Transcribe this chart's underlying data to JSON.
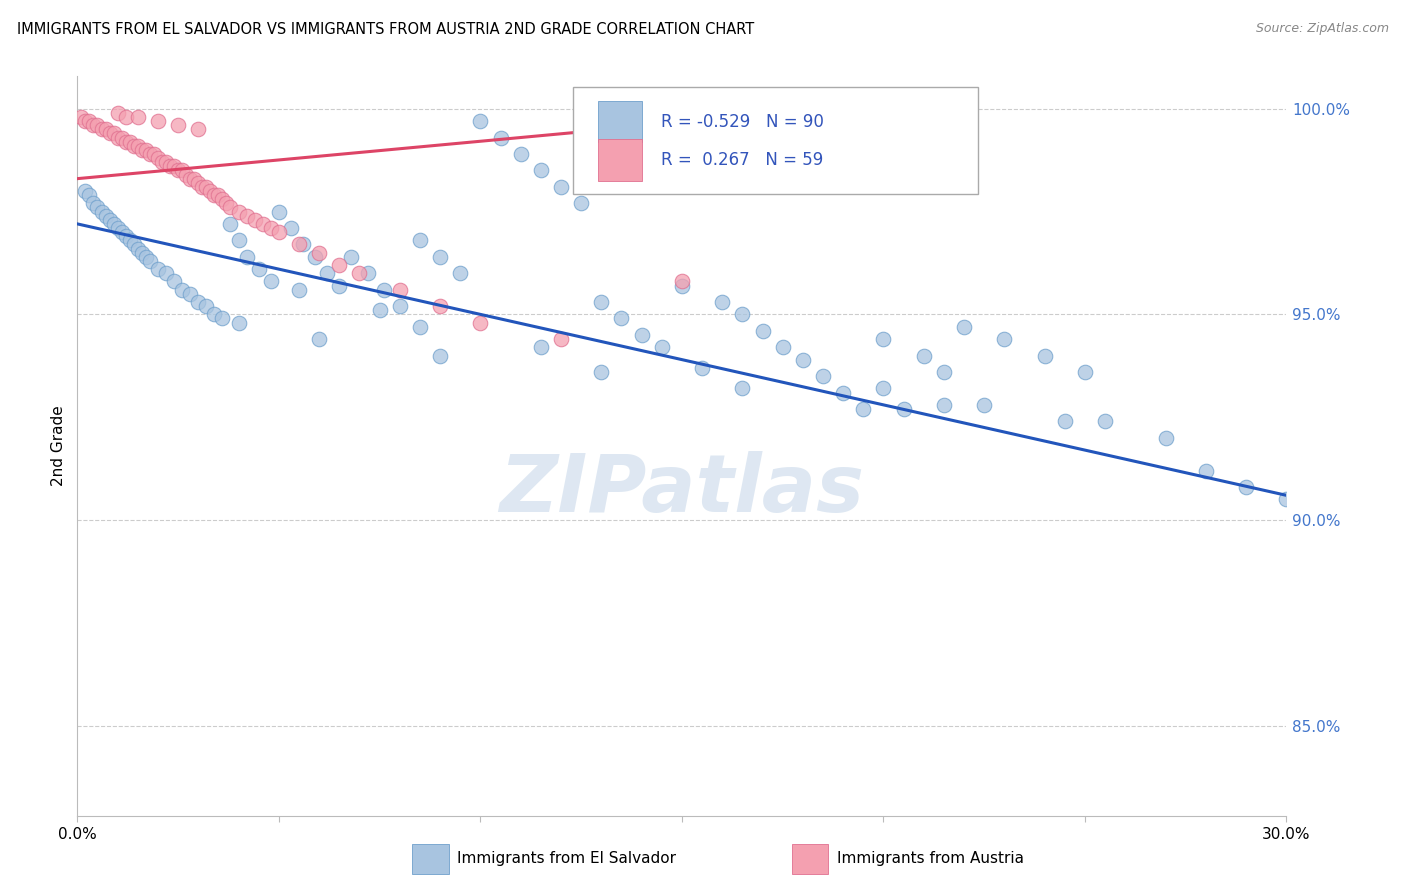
{
  "title": "IMMIGRANTS FROM EL SALVADOR VS IMMIGRANTS FROM AUSTRIA 2ND GRADE CORRELATION CHART",
  "source": "Source: ZipAtlas.com",
  "ylabel": "2nd Grade",
  "x_min": 0.0,
  "x_max": 0.3,
  "y_min": 0.828,
  "y_max": 1.008,
  "y_ticks": [
    0.85,
    0.9,
    0.95,
    1.0
  ],
  "y_tick_labels": [
    "85.0%",
    "90.0%",
    "95.0%",
    "100.0%"
  ],
  "x_ticks": [
    0.0,
    0.05,
    0.1,
    0.15,
    0.2,
    0.25,
    0.3
  ],
  "el_salvador_color": "#a8c4e0",
  "el_salvador_edge": "#6fa0cc",
  "austria_color": "#f4a0b0",
  "austria_edge": "#e07090",
  "el_salvador_line_color": "#2255bb",
  "austria_line_color": "#dd4466",
  "background_color": "#ffffff",
  "grid_color": "#cccccc",
  "watermark_text": "ZIPatlas",
  "watermark_color": "#c8d8ea",
  "el_salvador_x": [
    0.002,
    0.003,
    0.004,
    0.005,
    0.006,
    0.007,
    0.008,
    0.009,
    0.01,
    0.011,
    0.012,
    0.013,
    0.014,
    0.015,
    0.016,
    0.017,
    0.018,
    0.02,
    0.022,
    0.024,
    0.026,
    0.028,
    0.03,
    0.032,
    0.034,
    0.036,
    0.038,
    0.04,
    0.042,
    0.045,
    0.048,
    0.05,
    0.053,
    0.056,
    0.059,
    0.062,
    0.065,
    0.068,
    0.072,
    0.076,
    0.08,
    0.085,
    0.09,
    0.095,
    0.1,
    0.105,
    0.11,
    0.115,
    0.12,
    0.125,
    0.13,
    0.135,
    0.14,
    0.145,
    0.15,
    0.16,
    0.165,
    0.17,
    0.175,
    0.18,
    0.185,
    0.19,
    0.195,
    0.2,
    0.21,
    0.215,
    0.22,
    0.23,
    0.24,
    0.25,
    0.055,
    0.075,
    0.085,
    0.115,
    0.155,
    0.165,
    0.205,
    0.225,
    0.255,
    0.27,
    0.04,
    0.06,
    0.09,
    0.13,
    0.2,
    0.215,
    0.245,
    0.28,
    0.29,
    0.3
  ],
  "el_salvador_y": [
    0.98,
    0.979,
    0.977,
    0.976,
    0.975,
    0.974,
    0.973,
    0.972,
    0.971,
    0.97,
    0.969,
    0.968,
    0.967,
    0.966,
    0.965,
    0.964,
    0.963,
    0.961,
    0.96,
    0.958,
    0.956,
    0.955,
    0.953,
    0.952,
    0.95,
    0.949,
    0.972,
    0.968,
    0.964,
    0.961,
    0.958,
    0.975,
    0.971,
    0.967,
    0.964,
    0.96,
    0.957,
    0.964,
    0.96,
    0.956,
    0.952,
    0.968,
    0.964,
    0.96,
    0.997,
    0.993,
    0.989,
    0.985,
    0.981,
    0.977,
    0.953,
    0.949,
    0.945,
    0.942,
    0.957,
    0.953,
    0.95,
    0.946,
    0.942,
    0.939,
    0.935,
    0.931,
    0.927,
    0.944,
    0.94,
    0.936,
    0.947,
    0.944,
    0.94,
    0.936,
    0.956,
    0.951,
    0.947,
    0.942,
    0.937,
    0.932,
    0.927,
    0.928,
    0.924,
    0.92,
    0.948,
    0.944,
    0.94,
    0.936,
    0.932,
    0.928,
    0.924,
    0.912,
    0.908,
    0.905
  ],
  "austria_x": [
    0.001,
    0.002,
    0.003,
    0.004,
    0.005,
    0.006,
    0.007,
    0.008,
    0.009,
    0.01,
    0.011,
    0.012,
    0.013,
    0.014,
    0.015,
    0.016,
    0.017,
    0.018,
    0.019,
    0.02,
    0.021,
    0.022,
    0.023,
    0.024,
    0.025,
    0.026,
    0.027,
    0.028,
    0.029,
    0.03,
    0.031,
    0.032,
    0.033,
    0.034,
    0.035,
    0.036,
    0.037,
    0.038,
    0.04,
    0.042,
    0.044,
    0.046,
    0.048,
    0.05,
    0.055,
    0.06,
    0.065,
    0.07,
    0.08,
    0.09,
    0.01,
    0.012,
    0.015,
    0.02,
    0.025,
    0.03,
    0.1,
    0.12,
    0.15
  ],
  "austria_y": [
    0.998,
    0.997,
    0.997,
    0.996,
    0.996,
    0.995,
    0.995,
    0.994,
    0.994,
    0.993,
    0.993,
    0.992,
    0.992,
    0.991,
    0.991,
    0.99,
    0.99,
    0.989,
    0.989,
    0.988,
    0.987,
    0.987,
    0.986,
    0.986,
    0.985,
    0.985,
    0.984,
    0.983,
    0.983,
    0.982,
    0.981,
    0.981,
    0.98,
    0.979,
    0.979,
    0.978,
    0.977,
    0.976,
    0.975,
    0.974,
    0.973,
    0.972,
    0.971,
    0.97,
    0.967,
    0.965,
    0.962,
    0.96,
    0.956,
    0.952,
    0.999,
    0.998,
    0.998,
    0.997,
    0.996,
    0.995,
    0.948,
    0.944,
    0.958
  ],
  "blue_line_x": [
    0.0,
    0.3
  ],
  "blue_line_y": [
    0.972,
    0.906
  ],
  "pink_line_x": [
    0.0,
    0.165
  ],
  "pink_line_y": [
    0.983,
    0.998
  ]
}
